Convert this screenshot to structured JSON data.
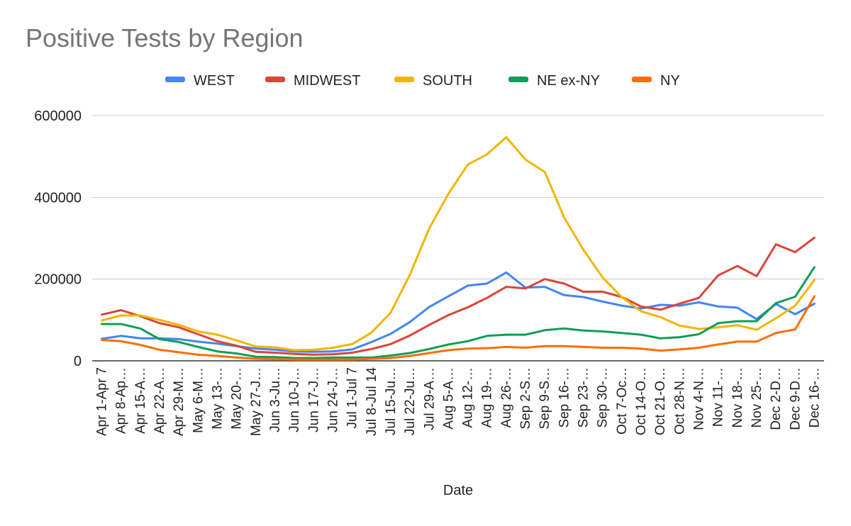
{
  "chart_data": {
    "type": "line",
    "title": "Positive Tests by Region",
    "xlabel": "Date",
    "ylabel": "",
    "ylim": [
      0,
      600000
    ],
    "yticks": [
      "0",
      "200000",
      "400000",
      "600000"
    ],
    "legend_position": "top-center",
    "grid": true,
    "categories": [
      "Apr 1-Apr 7",
      "Apr 8-Ap…",
      "Apr 15-A…",
      "Apr 22-A…",
      "Apr 29-M…",
      "May 6-M…",
      "May 13-…",
      "May 20-…",
      "May 27-J…",
      "Jun 3-Ju…",
      "Jun 10-J…",
      "Jun 17-J…",
      "Jun 24-J…",
      "Jul 1-Jul 7",
      "Jul 8-Jul 14",
      "Jul 15-Ju…",
      "Jul 22-Ju…",
      "Jul 29-A…",
      "Aug 5-A…",
      "Aug 12-…",
      "Aug 19-…",
      "Aug 26-…",
      "Sep 2-S…",
      "Sep 9-S…",
      "Sep 16-…",
      "Sep 23-…",
      "Sep 30-…",
      "Oct 7-Oc…",
      "Oct 14-O…",
      "Oct 21-O…",
      "Oct 28-N…",
      "Nov 4-N…",
      "Nov 11-…",
      "Nov 18-…",
      "Nov 25-…",
      "Dec 2-D…",
      "Dec 9-D…",
      "Dec 16-…"
    ],
    "series": [
      {
        "name": "WEST",
        "color": "#4285f4",
        "values": [
          54000,
          61000,
          55000,
          55000,
          53000,
          47000,
          42000,
          36000,
          30000,
          27000,
          23000,
          22000,
          23000,
          28000,
          46000,
          66000,
          95000,
          132000,
          158000,
          184000,
          189000,
          216000,
          179000,
          181000,
          161000,
          156000,
          145000,
          135000,
          128000,
          137000,
          135000,
          143000,
          133000,
          130000,
          102000,
          139000,
          114000,
          140000
        ]
      },
      {
        "name": "MIDWEST",
        "color": "#db4437",
        "values": [
          113000,
          124000,
          109000,
          92000,
          82000,
          65000,
          48000,
          37000,
          22000,
          20000,
          17000,
          15000,
          16000,
          20000,
          29000,
          41000,
          62000,
          88000,
          112000,
          131000,
          154000,
          181000,
          177000,
          200000,
          189000,
          169000,
          169000,
          156000,
          133000,
          125000,
          140000,
          154000,
          209000,
          232000,
          207000,
          285000,
          266000,
          301000
        ]
      },
      {
        "name": "SOUTH",
        "color": "#f4b400",
        "values": [
          99000,
          111000,
          111000,
          100000,
          88000,
          72000,
          64000,
          50000,
          35000,
          33000,
          26000,
          27000,
          32000,
          41000,
          69000,
          118000,
          211000,
          324000,
          409000,
          480000,
          505000,
          547000,
          492000,
          462000,
          351000,
          272000,
          204000,
          156000,
          121000,
          107000,
          86000,
          78000,
          82000,
          87000,
          76000,
          104000,
          135000,
          198000
        ]
      },
      {
        "name": "NE ex-NY",
        "color": "#0f9d58",
        "values": [
          90000,
          90000,
          79000,
          53000,
          46000,
          34000,
          23000,
          18000,
          10000,
          9000,
          7000,
          7000,
          8000,
          8000,
          8000,
          13000,
          19000,
          29000,
          40000,
          48000,
          61000,
          64000,
          64000,
          75000,
          79000,
          74000,
          72000,
          68000,
          64000,
          55000,
          58000,
          65000,
          92000,
          97000,
          97000,
          141000,
          157000,
          229000
        ]
      },
      {
        "name": "NY",
        "color": "#ff6d01",
        "values": [
          51000,
          48000,
          39000,
          27000,
          21000,
          15000,
          12000,
          8000,
          5000,
          4000,
          3000,
          3000,
          3000,
          3000,
          5000,
          7000,
          12000,
          19000,
          26000,
          30000,
          31000,
          34000,
          32000,
          36000,
          36000,
          34000,
          32000,
          32000,
          30000,
          25000,
          28000,
          32000,
          40000,
          47000,
          47000,
          68000,
          77000,
          158000
        ]
      }
    ]
  }
}
